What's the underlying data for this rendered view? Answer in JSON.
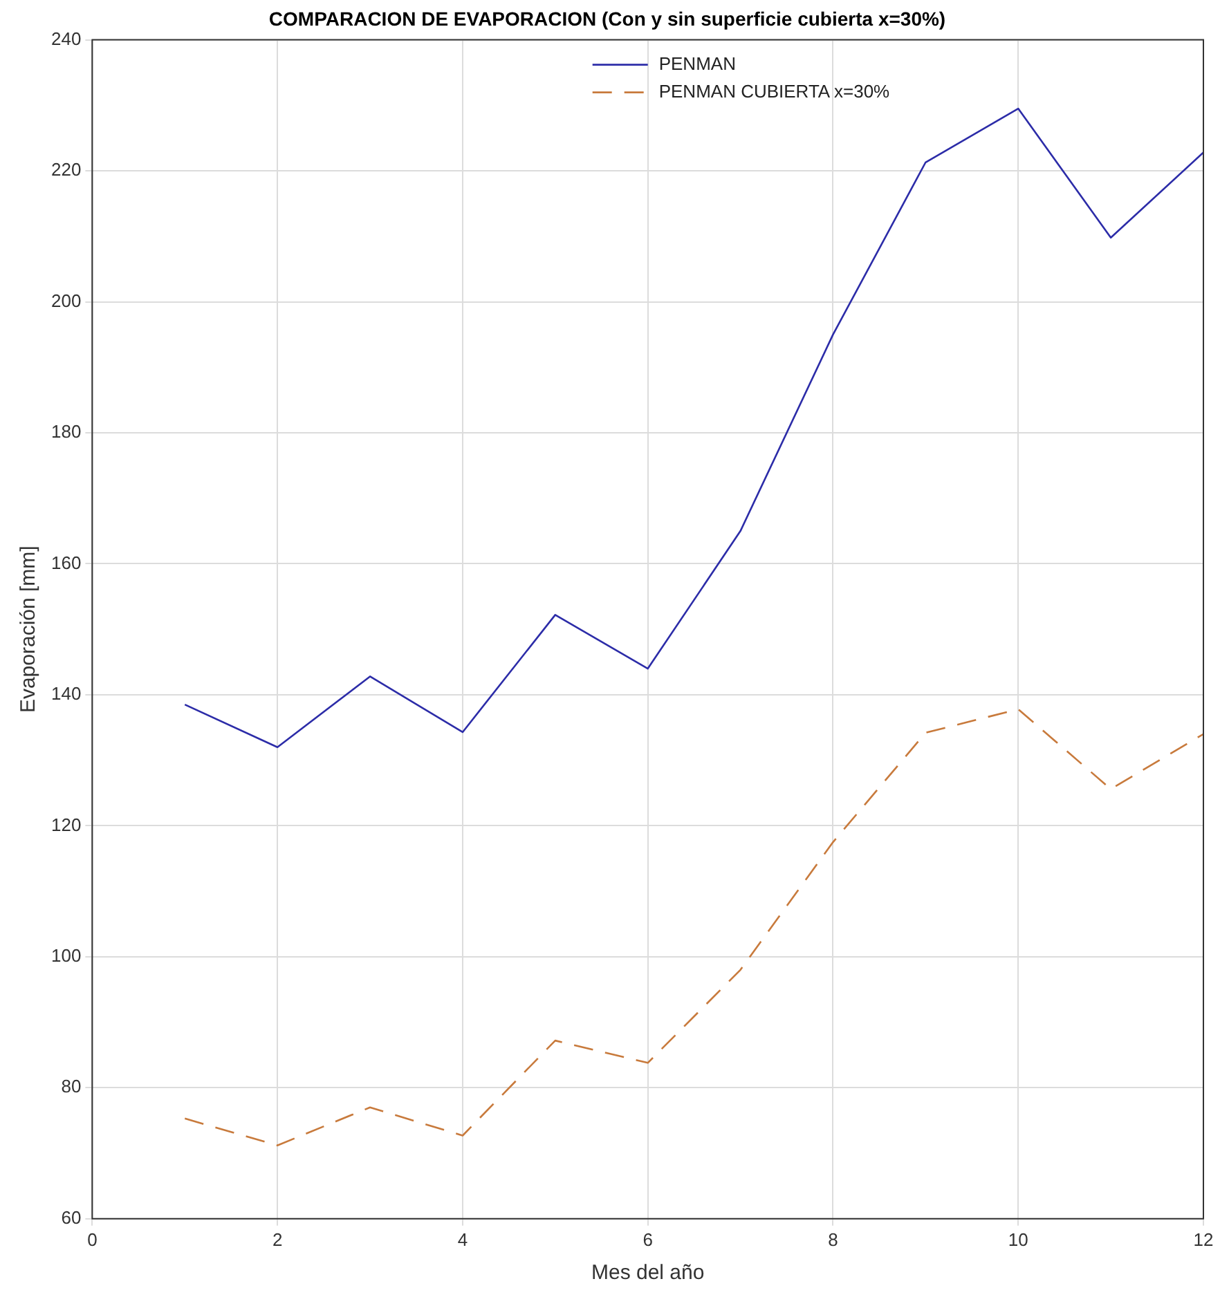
{
  "chart_data": {
    "type": "line",
    "title": "COMPARACION DE EVAPORACION (Con y sin superficie cubierta x=30%)",
    "xlabel": "Mes del año",
    "ylabel": "Evaporación [mm]",
    "x": [
      1,
      2,
      3,
      4,
      5,
      6,
      7,
      8,
      9,
      10,
      11,
      12
    ],
    "series": [
      {
        "name": "PENMAN",
        "color": "#2c2ca8",
        "line_style": "solid",
        "values": [
          138.5,
          132,
          142.8,
          134.3,
          152.2,
          144,
          165,
          195,
          221.3,
          229.5,
          209.8,
          222.8
        ]
      },
      {
        "name": "PENMAN CUBIERTA x=30%",
        "color": "#c87a3c",
        "line_style": "dashed",
        "values": [
          75.3,
          71.2,
          77,
          72.7,
          87.2,
          83.8,
          98,
          117.5,
          134.2,
          137.8,
          125.6,
          134
        ]
      }
    ],
    "xlim": [
      0,
      12
    ],
    "xticks": [
      0,
      2,
      4,
      6,
      8,
      10,
      12
    ],
    "ylim": [
      60,
      240
    ],
    "yticks": [
      60,
      80,
      100,
      120,
      140,
      160,
      180,
      200,
      220,
      240
    ],
    "grid": true,
    "legend": "top",
    "marker": "none"
  }
}
